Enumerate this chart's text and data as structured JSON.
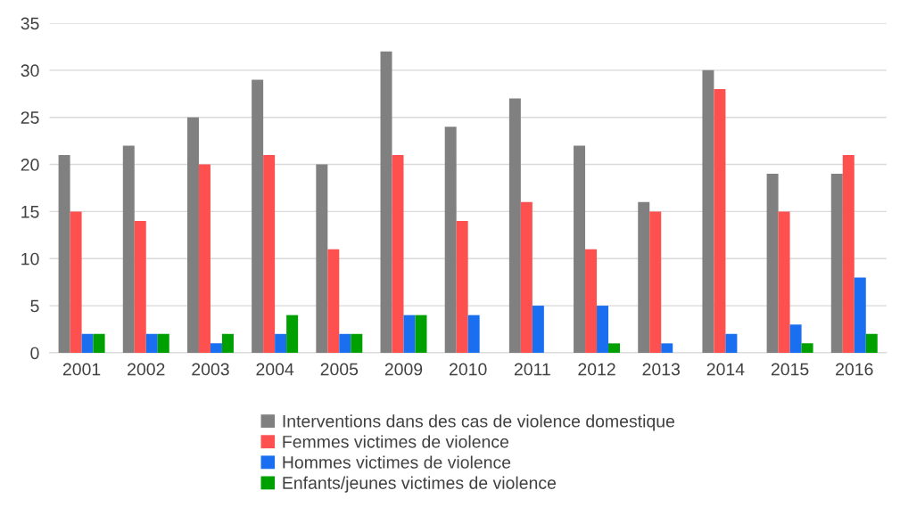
{
  "chart_data": {
    "type": "bar",
    "categories": [
      "2001",
      "2002",
      "2003",
      "2004",
      "2005",
      "2009",
      "2010",
      "2011",
      "2012",
      "2013",
      "2014",
      "2015",
      "2016"
    ],
    "series": [
      {
        "name": "Interventions dans des cas de violence domestique",
        "color": "#808080",
        "values": [
          21,
          22,
          25,
          29,
          20,
          32,
          24,
          27,
          22,
          16,
          30,
          19,
          19
        ]
      },
      {
        "name": "Femmes victimes de violence",
        "color": "#ff5050",
        "values": [
          15,
          14,
          20,
          21,
          11,
          21,
          14,
          16,
          11,
          15,
          28,
          15,
          21
        ]
      },
      {
        "name": "Hommes victimes de violence",
        "color": "#1a6ff0",
        "values": [
          2,
          2,
          1,
          2,
          2,
          4,
          4,
          5,
          5,
          1,
          2,
          3,
          8
        ]
      },
      {
        "name": "Enfants/jeunes victimes de violence",
        "color": "#00a000",
        "values": [
          2,
          2,
          2,
          4,
          2,
          4,
          0,
          0,
          1,
          0,
          0,
          1,
          2
        ]
      }
    ],
    "ylim": [
      0,
      35
    ],
    "yticks": [
      0,
      5,
      10,
      15,
      20,
      25,
      30,
      35
    ],
    "grid": "y",
    "legend": "bottom"
  }
}
